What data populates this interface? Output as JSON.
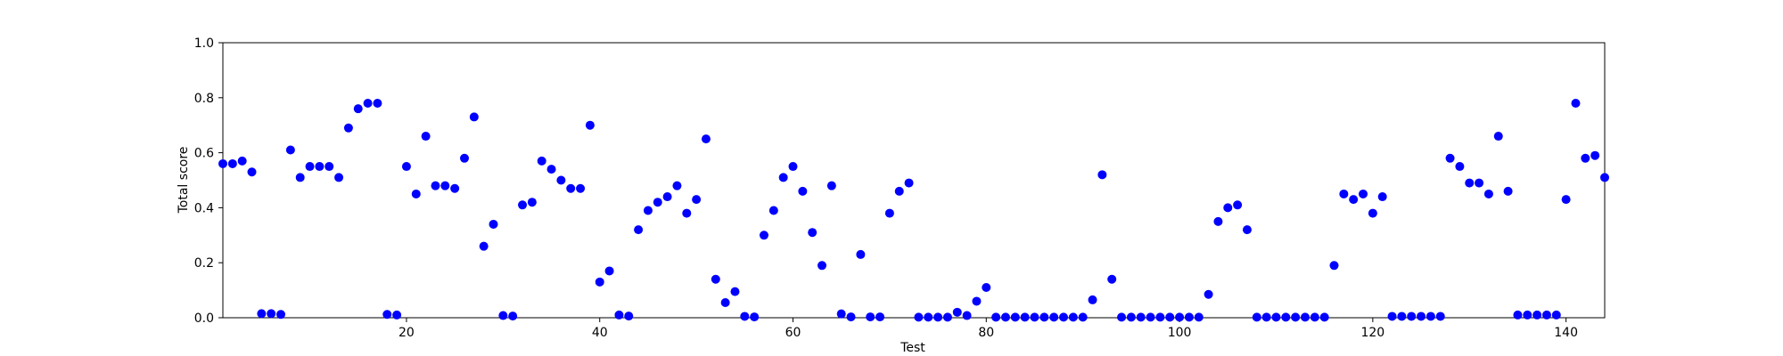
{
  "chart_data": {
    "type": "scatter",
    "xlabel": "Test",
    "ylabel": "Total score",
    "xlim": [
      1,
      144
    ],
    "ylim": [
      0,
      1.0
    ],
    "xticks": [
      20,
      40,
      60,
      80,
      100,
      120,
      140
    ],
    "yticks": [
      0.0,
      0.2,
      0.4,
      0.6,
      0.8,
      1.0
    ],
    "ytick_labels": [
      "0.0",
      "0.2",
      "0.4",
      "0.6",
      "0.8",
      "1.0"
    ],
    "grid": false,
    "marker_color": "#0000ff",
    "series": [
      {
        "x": [
          1,
          2,
          3,
          4,
          5,
          6,
          7,
          8,
          9,
          10,
          11,
          12,
          13,
          14,
          15,
          16,
          17,
          18,
          19,
          20,
          21,
          22,
          23,
          24,
          25,
          26,
          27,
          28,
          29,
          30,
          31,
          32,
          33,
          34,
          35,
          36,
          37,
          38,
          39,
          40,
          41,
          42,
          43,
          44,
          45,
          46,
          47,
          48,
          49,
          50,
          51,
          52,
          53,
          54,
          55,
          56,
          57,
          58,
          59,
          60,
          61,
          62,
          63,
          64,
          65,
          66,
          67,
          68,
          69,
          70,
          71,
          72,
          73,
          74,
          75,
          76,
          77,
          78,
          79,
          80,
          81,
          82,
          83,
          84,
          85,
          86,
          87,
          88,
          89,
          90,
          91,
          92,
          93,
          94,
          95,
          96,
          97,
          98,
          99,
          100,
          101,
          102,
          103,
          104,
          105,
          106,
          107,
          108,
          109,
          110,
          111,
          112,
          113,
          114,
          115,
          116,
          117,
          118,
          119,
          120,
          121,
          122,
          123,
          124,
          125,
          126,
          127,
          128,
          129,
          130,
          131,
          132,
          133,
          134,
          135,
          136,
          137,
          138,
          139,
          140,
          141,
          142,
          143,
          144
        ],
        "y": [
          0.56,
          0.56,
          0.57,
          0.53,
          0.015,
          0.015,
          0.012,
          0.61,
          0.51,
          0.55,
          0.55,
          0.55,
          0.51,
          0.69,
          0.76,
          0.78,
          0.78,
          0.012,
          0.01,
          0.55,
          0.45,
          0.66,
          0.48,
          0.48,
          0.47,
          0.58,
          0.73,
          0.26,
          0.34,
          0.008,
          0.006,
          0.41,
          0.42,
          0.57,
          0.54,
          0.5,
          0.47,
          0.47,
          0.7,
          0.13,
          0.17,
          0.01,
          0.006,
          0.32,
          0.39,
          0.42,
          0.44,
          0.48,
          0.38,
          0.43,
          0.65,
          0.14,
          0.055,
          0.095,
          0.005,
          0.003,
          0.3,
          0.39,
          0.51,
          0.55,
          0.46,
          0.31,
          0.19,
          0.48,
          0.014,
          0.003,
          0.23,
          0.003,
          0.003,
          0.38,
          0.46,
          0.49,
          0.002,
          0.002,
          0.002,
          0.002,
          0.02,
          0.008,
          0.06,
          0.11,
          0.002,
          0.002,
          0.002,
          0.002,
          0.002,
          0.002,
          0.002,
          0.002,
          0.002,
          0.002,
          0.065,
          0.52,
          0.14,
          0.002,
          0.002,
          0.002,
          0.002,
          0.002,
          0.002,
          0.002,
          0.002,
          0.002,
          0.085,
          0.35,
          0.4,
          0.41,
          0.32,
          0.002,
          0.002,
          0.002,
          0.002,
          0.002,
          0.002,
          0.002,
          0.002,
          0.19,
          0.45,
          0.43,
          0.45,
          0.38,
          0.44,
          0.005,
          0.005,
          0.005,
          0.005,
          0.005,
          0.005,
          0.58,
          0.55,
          0.49,
          0.49,
          0.45,
          0.66,
          0.46,
          0.01,
          0.01,
          0.01,
          0.01,
          0.01,
          0.43,
          0.78,
          0.58,
          0.59,
          0.51
        ]
      }
    ]
  }
}
